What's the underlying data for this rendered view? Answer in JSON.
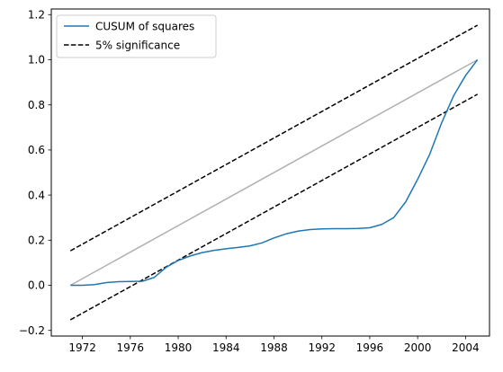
{
  "chart_data": {
    "type": "line",
    "title": "",
    "xlabel": "",
    "ylabel": "",
    "xlim": [
      1969.4,
      2006.0
    ],
    "ylim": [
      -0.225,
      1.225
    ],
    "x_ticks": [
      1972,
      1976,
      1980,
      1984,
      1988,
      1992,
      1996,
      2000,
      2004
    ],
    "x_tick_labels": [
      "1972",
      "1976",
      "1980",
      "1984",
      "1988",
      "1992",
      "1996",
      "2000",
      "2004"
    ],
    "y_ticks": [
      -0.2,
      0.0,
      0.2,
      0.4,
      0.6,
      0.8,
      1.0,
      1.2
    ],
    "y_tick_labels": [
      "−0.2",
      "0.0",
      "0.2",
      "0.4",
      "0.6",
      "0.8",
      "1.0",
      "1.2"
    ],
    "grid": false,
    "legend": {
      "placement": "upper-left",
      "entries": [
        {
          "label": "CUSUM of squares",
          "color": "#1f77b4",
          "style": "solid"
        },
        {
          "label": "5% significance",
          "color": "#000000",
          "style": "dashed"
        }
      ]
    },
    "series": [
      {
        "name": "CUSUM of squares",
        "color": "#1f77b4",
        "style": "solid",
        "x": [
          1971,
          1972,
          1973,
          1974,
          1975,
          1976,
          1977,
          1978,
          1979,
          1980,
          1981,
          1982,
          1983,
          1984,
          1985,
          1986,
          1987,
          1988,
          1989,
          1990,
          1991,
          1992,
          1993,
          1994,
          1995,
          1996,
          1997,
          1998,
          1999,
          2000,
          2001,
          2002,
          2003,
          2004,
          2005
        ],
        "values": [
          0.0,
          0.0,
          0.003,
          0.012,
          0.016,
          0.017,
          0.018,
          0.035,
          0.08,
          0.11,
          0.13,
          0.145,
          0.155,
          0.162,
          0.168,
          0.175,
          0.188,
          0.21,
          0.228,
          0.24,
          0.247,
          0.25,
          0.251,
          0.251,
          0.252,
          0.255,
          0.27,
          0.3,
          0.37,
          0.47,
          0.58,
          0.72,
          0.84,
          0.93,
          1.0
        ]
      },
      {
        "name": "5% significance",
        "color": "#000000",
        "style": "dashed",
        "x": [
          1971,
          2005
        ],
        "values": [
          0.153,
          1.153
        ]
      },
      {
        "name": "5% significance",
        "color": "#000000",
        "style": "dashed",
        "x": [
          1971,
          2005
        ],
        "values": [
          -0.153,
          0.847
        ]
      },
      {
        "name": "",
        "color": "#b0b0b0",
        "style": "solid",
        "x": [
          1971,
          2005
        ],
        "values": [
          0.0,
          1.0
        ]
      }
    ]
  }
}
